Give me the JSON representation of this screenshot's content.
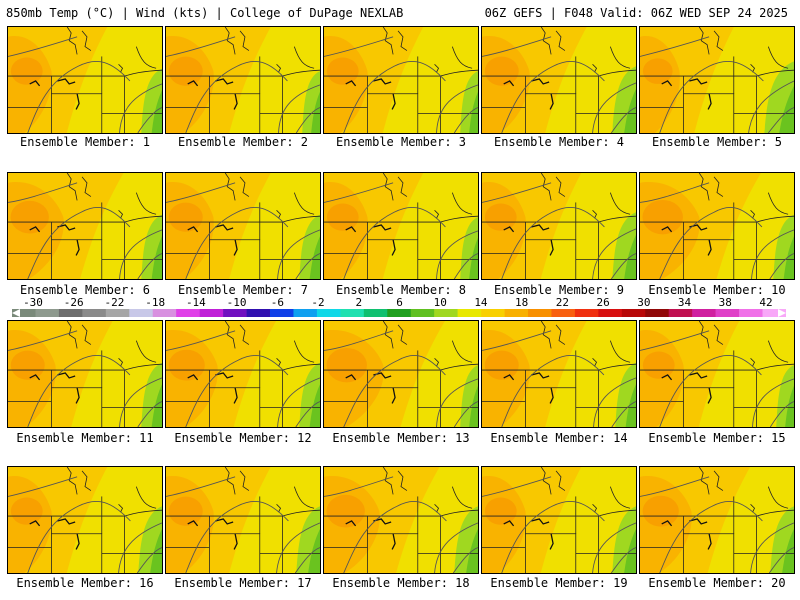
{
  "header": {
    "left_title": "850mb Temp (°C) | Wind (kts) | College of DuPage NEXLAB",
    "right_title": "06Z GEFS | F048 Valid: 06Z WED SEP 24 2025"
  },
  "colorbar": {
    "labels": [
      "-30",
      "-26",
      "-22",
      "-18",
      "-14",
      "-10",
      "-6",
      "-2",
      "2",
      "6",
      "10",
      "14",
      "18",
      "22",
      "26",
      "30",
      "34",
      "38",
      "42"
    ],
    "colors": [
      "#7a8a7a",
      "#8e9a8e",
      "#6e6e6e",
      "#8a8a8a",
      "#a6a6a6",
      "#c8c8e8",
      "#d890e0",
      "#e040e8",
      "#c020d8",
      "#7010c0",
      "#3010b0",
      "#1040e8",
      "#10a0f0",
      "#10d8e8",
      "#20e0b0",
      "#10c070",
      "#20a020",
      "#60c020",
      "#a0d820",
      "#e8e800",
      "#f8d000",
      "#f8b000",
      "#f89000",
      "#f86010",
      "#f03010",
      "#d81010",
      "#b80808",
      "#900808",
      "#c01050",
      "#d020a0",
      "#e040c8",
      "#f070e8",
      "#f8a8f8"
    ]
  },
  "panels": [
    {
      "label": "Ensemble Member: 1",
      "warm": 0.55,
      "cool": 0.35
    },
    {
      "label": "Ensemble Member: 2",
      "warm": 0.6,
      "cool": 0.3
    },
    {
      "label": "Ensemble Member: 3",
      "warm": 0.55,
      "cool": 0.3
    },
    {
      "label": "Ensemble Member: 4",
      "warm": 0.6,
      "cool": 0.4
    },
    {
      "label": "Ensemble Member: 5",
      "warm": 0.5,
      "cool": 0.5
    },
    {
      "label": "Ensemble Member: 6",
      "warm": 0.7,
      "cool": 0.35
    },
    {
      "label": "Ensemble Member: 7",
      "warm": 0.6,
      "cool": 0.35
    },
    {
      "label": "Ensemble Member: 8",
      "warm": 0.55,
      "cool": 0.3
    },
    {
      "label": "Ensemble Member: 9",
      "warm": 0.55,
      "cool": 0.4
    },
    {
      "label": "Ensemble Member: 10",
      "warm": 0.75,
      "cool": 0.35
    },
    {
      "label": "Ensemble Member: 11",
      "warm": 0.6,
      "cool": 0.35
    },
    {
      "label": "Ensemble Member: 12",
      "warm": 0.65,
      "cool": 0.35
    },
    {
      "label": "Ensemble Member: 13",
      "warm": 0.75,
      "cool": 0.3
    },
    {
      "label": "Ensemble Member: 14",
      "warm": 0.6,
      "cool": 0.35
    },
    {
      "label": "Ensemble Member: 15",
      "warm": 0.55,
      "cool": 0.3
    },
    {
      "label": "Ensemble Member: 16",
      "warm": 0.55,
      "cool": 0.4
    },
    {
      "label": "Ensemble Member: 17",
      "warm": 0.6,
      "cool": 0.4
    },
    {
      "label": "Ensemble Member: 18",
      "warm": 0.7,
      "cool": 0.4
    },
    {
      "label": "Ensemble Member: 19",
      "warm": 0.55,
      "cool": 0.4
    },
    {
      "label": "Ensemble Member: 20",
      "warm": 0.65,
      "cool": 0.4
    }
  ]
}
